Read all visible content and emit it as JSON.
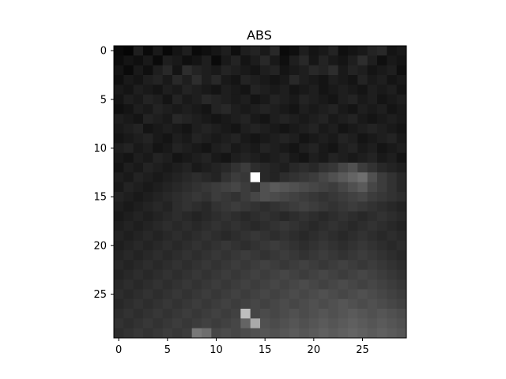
{
  "chart_data": {
    "type": "heatmap",
    "title": "ABS",
    "colormap": "gray",
    "x_ticks": [
      "0",
      "5",
      "10",
      "15",
      "20",
      "25"
    ],
    "y_ticks": [
      "0",
      "5",
      "10",
      "15",
      "20",
      "25"
    ],
    "xlim": [
      -0.5,
      29.5
    ],
    "ylim": [
      29.5,
      -0.5
    ],
    "vmin": 0,
    "vmax": 255,
    "values": [
      [
        10,
        5,
        30,
        10,
        25,
        8,
        20,
        30,
        10,
        15,
        22,
        30,
        15,
        30,
        35,
        25,
        40,
        10,
        15,
        30,
        20,
        25,
        35,
        15,
        20,
        25,
        35,
        40,
        20,
        25
      ],
      [
        12,
        20,
        15,
        25,
        10,
        30,
        25,
        15,
        20,
        30,
        10,
        25,
        35,
        20,
        28,
        40,
        25,
        15,
        30,
        40,
        22,
        35,
        25,
        20,
        30,
        45,
        30,
        15,
        25,
        20
      ],
      [
        20,
        10,
        25,
        15,
        30,
        40,
        20,
        45,
        35,
        30,
        25,
        35,
        30,
        25,
        20,
        30,
        35,
        20,
        25,
        30,
        40,
        35,
        45,
        25,
        35,
        30,
        20,
        25,
        30,
        15
      ],
      [
        15,
        25,
        20,
        30,
        35,
        25,
        40,
        30,
        45,
        30,
        40,
        25,
        20,
        35,
        30,
        25,
        20,
        25,
        40,
        30,
        25,
        20,
        30,
        25,
        20,
        35,
        25,
        30,
        20,
        25
      ],
      [
        25,
        20,
        30,
        25,
        20,
        30,
        25,
        35,
        30,
        25,
        20,
        30,
        25,
        20,
        35,
        30,
        25,
        30,
        20,
        25,
        30,
        20,
        25,
        30,
        25,
        20,
        30,
        25,
        30,
        20
      ],
      [
        20,
        30,
        25,
        35,
        30,
        20,
        35,
        25,
        30,
        40,
        35,
        30,
        25,
        30,
        20,
        25,
        35,
        30,
        25,
        35,
        30,
        25,
        20,
        30,
        35,
        25,
        30,
        20,
        25,
        30
      ],
      [
        15,
        20,
        30,
        25,
        35,
        30,
        25,
        30,
        25,
        20,
        35,
        40,
        30,
        25,
        30,
        35,
        30,
        25,
        20,
        30,
        25,
        30,
        35,
        25,
        20,
        30,
        25,
        30,
        20,
        25
      ],
      [
        30,
        25,
        20,
        35,
        30,
        25,
        40,
        35,
        30,
        25,
        20,
        25,
        30,
        35,
        25,
        20,
        30,
        35,
        30,
        25,
        30,
        35,
        25,
        30,
        35,
        25,
        20,
        25,
        30,
        25
      ],
      [
        25,
        30,
        35,
        20,
        25,
        30,
        25,
        20,
        30,
        35,
        30,
        25,
        20,
        30,
        35,
        30,
        25,
        20,
        25,
        30,
        35,
        25,
        30,
        20,
        25,
        30,
        35,
        30,
        25,
        20
      ],
      [
        20,
        25,
        30,
        35,
        25,
        20,
        30,
        25,
        35,
        30,
        25,
        30,
        35,
        25,
        20,
        25,
        30,
        35,
        30,
        20,
        25,
        30,
        25,
        35,
        30,
        20,
        25,
        30,
        35,
        25
      ],
      [
        30,
        35,
        25,
        30,
        20,
        25,
        35,
        30,
        25,
        20,
        30,
        35,
        25,
        30,
        25,
        35,
        30,
        25,
        20,
        30,
        35,
        25,
        20,
        30,
        35,
        25,
        30,
        20,
        25,
        30
      ],
      [
        25,
        20,
        30,
        25,
        35,
        30,
        20,
        25,
        30,
        35,
        25,
        20,
        30,
        35,
        30,
        25,
        30,
        35,
        25,
        20,
        30,
        25,
        35,
        30,
        25,
        30,
        35,
        25,
        30,
        20
      ],
      [
        20,
        30,
        25,
        35,
        30,
        25,
        30,
        35,
        25,
        30,
        35,
        40,
        50,
        60,
        45,
        40,
        35,
        30,
        40,
        45,
        40,
        50,
        55,
        70,
        80,
        60,
        50,
        40,
        35,
        30
      ],
      [
        30,
        25,
        35,
        30,
        25,
        30,
        35,
        40,
        45,
        40,
        35,
        50,
        60,
        55,
        255,
        40,
        35,
        45,
        50,
        55,
        60,
        70,
        80,
        90,
        100,
        110,
        80,
        60,
        50,
        40
      ],
      [
        25,
        35,
        30,
        25,
        30,
        35,
        40,
        45,
        50,
        55,
        60,
        65,
        70,
        60,
        50,
        80,
        90,
        85,
        80,
        75,
        70,
        65,
        60,
        70,
        80,
        90,
        70,
        60,
        50,
        40
      ],
      [
        35,
        30,
        25,
        30,
        35,
        40,
        45,
        50,
        55,
        50,
        60,
        55,
        50,
        60,
        70,
        80,
        75,
        70,
        65,
        60,
        55,
        50,
        55,
        60,
        65,
        70,
        60,
        55,
        50,
        45
      ],
      [
        30,
        25,
        30,
        35,
        40,
        35,
        45,
        50,
        45,
        40,
        50,
        55,
        60,
        55,
        50,
        45,
        50,
        55,
        60,
        65,
        60,
        55,
        50,
        55,
        60,
        55,
        50,
        45,
        40,
        35
      ],
      [
        25,
        30,
        35,
        30,
        35,
        40,
        45,
        40,
        35,
        40,
        45,
        50,
        45,
        40,
        45,
        50,
        45,
        40,
        45,
        50,
        45,
        40,
        45,
        50,
        45,
        40,
        45,
        50,
        45,
        40
      ],
      [
        30,
        35,
        30,
        35,
        40,
        45,
        40,
        45,
        40,
        45,
        50,
        45,
        50,
        45,
        40,
        45,
        50,
        55,
        50,
        45,
        40,
        45,
        50,
        45,
        40,
        45,
        50,
        45,
        40,
        35
      ],
      [
        35,
        30,
        35,
        40,
        35,
        40,
        45,
        40,
        45,
        50,
        45,
        40,
        45,
        50,
        55,
        50,
        45,
        50,
        45,
        40,
        45,
        50,
        45,
        40,
        45,
        50,
        45,
        40,
        45,
        40
      ],
      [
        30,
        35,
        40,
        35,
        40,
        45,
        40,
        45,
        50,
        45,
        50,
        55,
        50,
        45,
        50,
        55,
        60,
        55,
        50,
        45,
        50,
        55,
        50,
        45,
        50,
        55,
        50,
        45,
        40,
        45
      ],
      [
        35,
        40,
        35,
        40,
        45,
        40,
        45,
        50,
        45,
        50,
        55,
        50,
        55,
        60,
        55,
        50,
        55,
        60,
        55,
        50,
        55,
        60,
        55,
        50,
        55,
        60,
        55,
        50,
        45,
        40
      ],
      [
        40,
        35,
        40,
        45,
        40,
        45,
        50,
        45,
        50,
        55,
        50,
        55,
        60,
        55,
        60,
        65,
        60,
        55,
        60,
        65,
        60,
        55,
        60,
        65,
        60,
        55,
        60,
        55,
        50,
        45
      ],
      [
        35,
        40,
        45,
        40,
        45,
        50,
        45,
        50,
        55,
        50,
        55,
        60,
        55,
        60,
        65,
        60,
        65,
        70,
        65,
        60,
        65,
        70,
        65,
        60,
        65,
        70,
        65,
        60,
        55,
        50
      ],
      [
        40,
        45,
        40,
        45,
        50,
        45,
        50,
        55,
        50,
        55,
        60,
        55,
        60,
        65,
        60,
        65,
        70,
        65,
        70,
        75,
        70,
        65,
        70,
        75,
        70,
        65,
        70,
        65,
        60,
        55
      ],
      [
        45,
        40,
        45,
        50,
        45,
        50,
        55,
        50,
        55,
        60,
        55,
        60,
        65,
        60,
        65,
        70,
        65,
        70,
        75,
        70,
        75,
        80,
        75,
        70,
        75,
        80,
        75,
        70,
        65,
        60
      ],
      [
        40,
        45,
        50,
        45,
        50,
        55,
        50,
        55,
        60,
        55,
        60,
        65,
        60,
        65,
        70,
        65,
        70,
        75,
        70,
        75,
        80,
        75,
        80,
        85,
        80,
        75,
        80,
        75,
        70,
        65
      ],
      [
        45,
        50,
        45,
        50,
        55,
        50,
        55,
        60,
        55,
        60,
        65,
        60,
        65,
        190,
        70,
        75,
        70,
        75,
        80,
        75,
        80,
        85,
        80,
        85,
        90,
        85,
        80,
        85,
        80,
        75
      ],
      [
        50,
        45,
        50,
        55,
        50,
        55,
        60,
        55,
        60,
        65,
        60,
        65,
        70,
        100,
        170,
        80,
        75,
        80,
        85,
        80,
        85,
        90,
        85,
        90,
        95,
        90,
        85,
        90,
        85,
        80
      ],
      [
        45,
        50,
        55,
        50,
        55,
        60,
        55,
        60,
        120,
        110,
        70,
        75,
        70,
        75,
        80,
        85,
        80,
        85,
        90,
        85,
        90,
        95,
        90,
        95,
        100,
        95,
        90,
        95,
        90,
        85
      ]
    ]
  }
}
